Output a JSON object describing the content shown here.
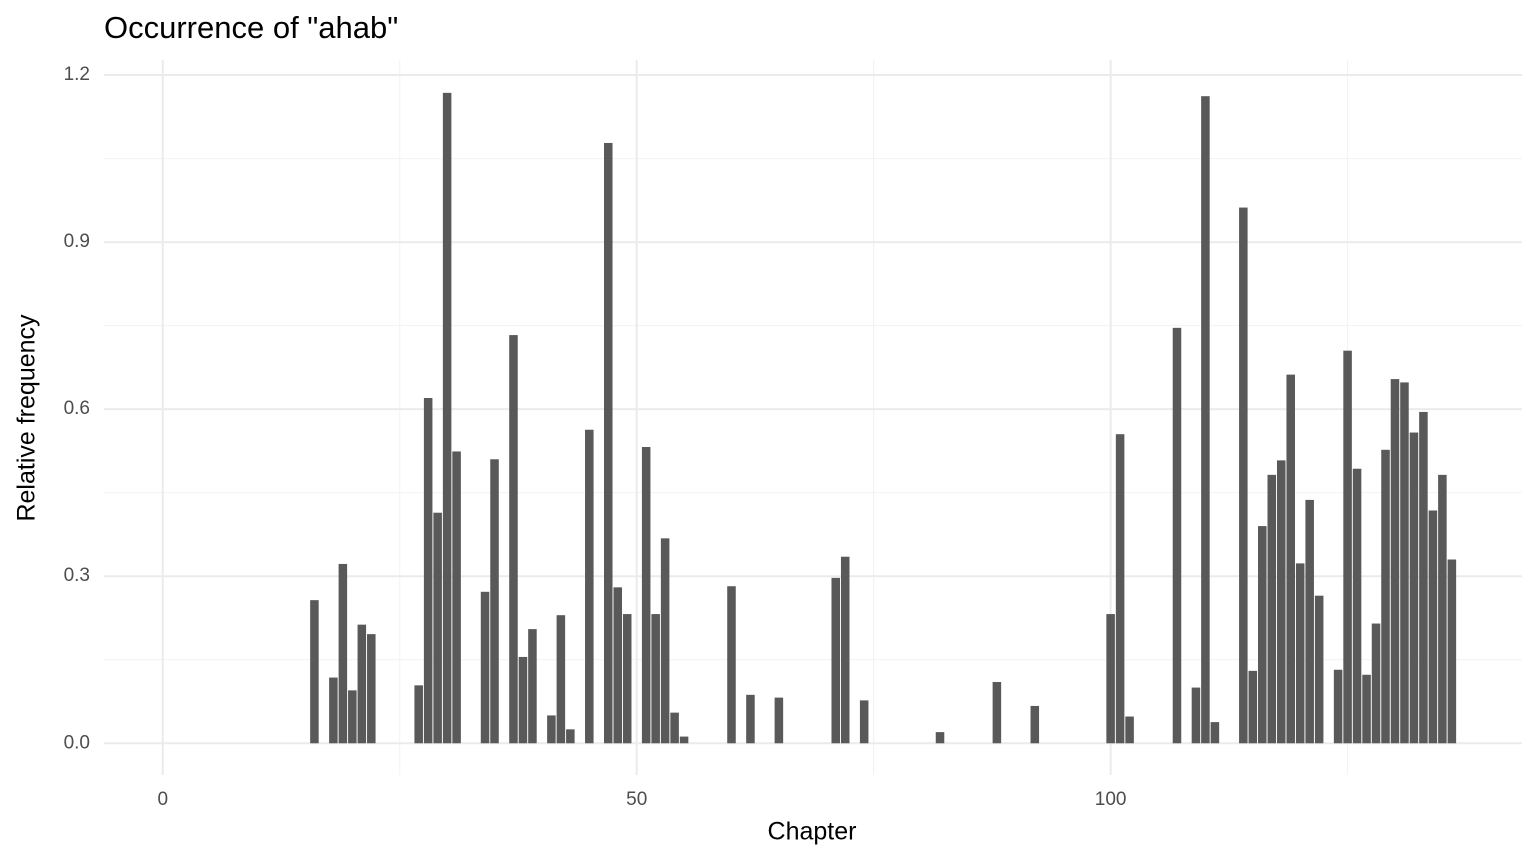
{
  "chart_data": {
    "type": "bar",
    "title": "Occurrence of \"ahab\"",
    "x_label": "Chapter",
    "y_label": "Relative frequency",
    "x": [
      16,
      18,
      19,
      20,
      21,
      22,
      27,
      28,
      29,
      30,
      31,
      34,
      35,
      37,
      38,
      39,
      41,
      42,
      43,
      45,
      47,
      48,
      49,
      51,
      52,
      53,
      54,
      55,
      60,
      62,
      65,
      71,
      72,
      74,
      82,
      88,
      92,
      100,
      101,
      102,
      107,
      109,
      110,
      111,
      114,
      115,
      116,
      117,
      118,
      119,
      120,
      121,
      122,
      124,
      125,
      126,
      127,
      128,
      129,
      130,
      131,
      132,
      133,
      134,
      135,
      136
    ],
    "values": [
      0.257,
      0.118,
      0.322,
      0.095,
      0.213,
      0.196,
      0.104,
      0.62,
      0.414,
      1.168,
      0.524,
      0.272,
      0.51,
      0.733,
      0.155,
      0.205,
      0.05,
      0.23,
      0.025,
      0.563,
      1.078,
      0.28,
      0.232,
      0.532,
      0.232,
      0.368,
      0.055,
      0.012,
      0.282,
      0.087,
      0.082,
      0.297,
      0.335,
      0.077,
      0.02,
      0.11,
      0.067,
      0.232,
      0.555,
      0.048,
      0.746,
      0.1,
      1.162,
      0.038,
      0.962,
      0.13,
      0.39,
      0.482,
      0.508,
      0.662,
      0.323,
      0.437,
      0.265,
      0.132,
      0.705,
      0.493,
      0.123,
      0.215,
      0.527,
      0.654,
      0.648,
      0.558,
      0.595,
      0.418,
      0.482,
      0.33
    ],
    "color": "#595959",
    "xlim": [
      -6.2,
      143.4
    ],
    "xticks": [
      0,
      50,
      100
    ],
    "ylim": [
      -0.057,
      1.227
    ],
    "yticks": [
      {
        "value": 0,
        "label": "0.0"
      },
      {
        "value": 0.3,
        "label": "0.3"
      },
      {
        "value": 0.6,
        "label": "0.6"
      },
      {
        "value": 0.9,
        "label": "0.9"
      },
      {
        "value": 1.2,
        "label": "1.2"
      }
    ],
    "grid": true
  }
}
